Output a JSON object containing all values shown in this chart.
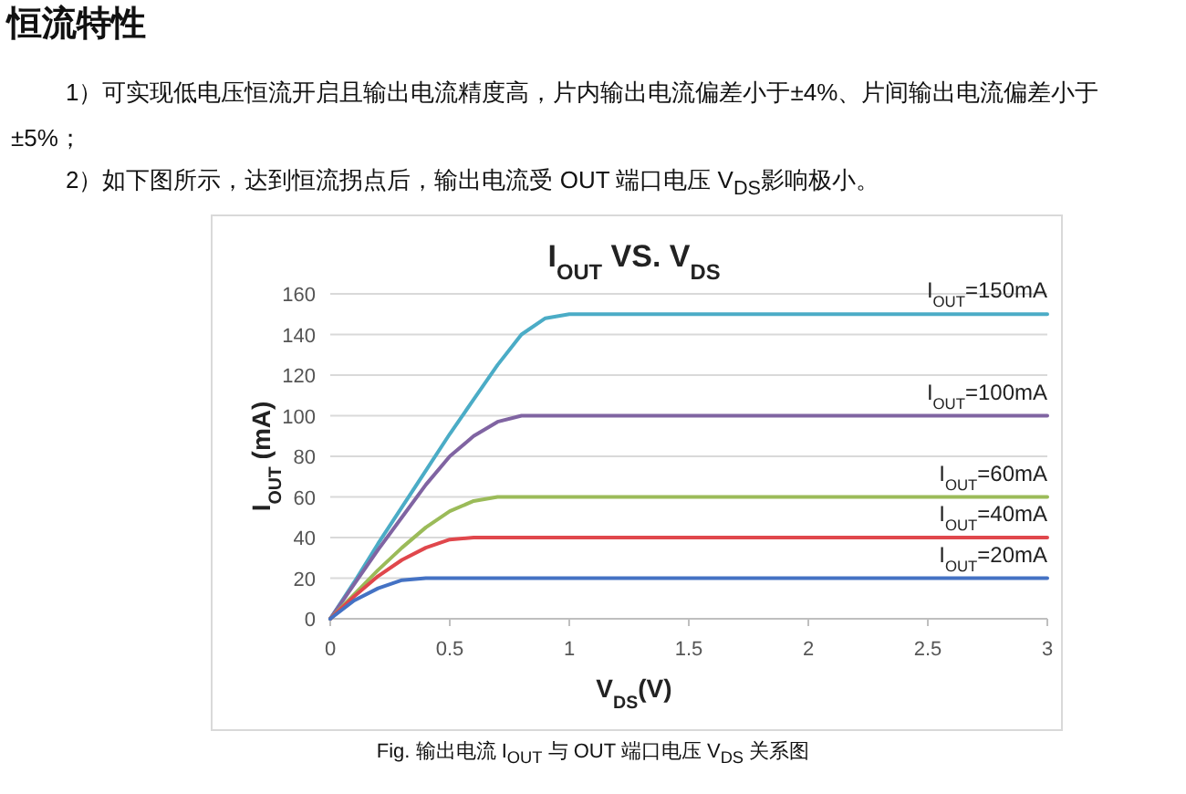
{
  "chart_data": {
    "type": "line",
    "title": "I$_{OUT}$ VS. V$_{DS}$",
    "xlabel": "V$_{DS}$(V)",
    "ylabel": "I$_{OUT}$ (mA)",
    "xlim": [
      0,
      3
    ],
    "xticks": [
      0,
      0.5,
      1,
      1.5,
      2,
      2.5,
      3
    ],
    "ylim": [
      0,
      160
    ],
    "yticks": [
      0,
      20,
      40,
      60,
      80,
      100,
      120,
      140,
      160
    ],
    "grid": "y",
    "marker": "none",
    "line_style": "solid",
    "x": [
      0,
      0.1,
      0.2,
      0.3,
      0.4,
      0.5,
      0.6,
      0.7,
      0.8,
      0.9,
      1.0,
      1.5,
      2,
      2.5,
      3
    ],
    "series": [
      {
        "name": "I$_{OUT}$=150mA",
        "color": "#4bacc6",
        "values": [
          0,
          18,
          37,
          55,
          73,
          91,
          108,
          125,
          140,
          148,
          150,
          150,
          150,
          150,
          150
        ]
      },
      {
        "name": "I$_{OUT}$=100mA",
        "color": "#8064a2",
        "values": [
          0,
          17,
          34,
          50,
          66,
          80,
          90,
          97,
          100,
          100,
          100,
          100,
          100,
          100,
          100
        ]
      },
      {
        "name": "I$_{OUT}$=60mA",
        "color": "#9bbb59",
        "values": [
          0,
          12,
          24,
          35,
          45,
          53,
          58,
          60,
          60,
          60,
          60,
          60,
          60,
          60,
          60
        ]
      },
      {
        "name": "I$_{OUT}$=40mA",
        "color": "#e0474c",
        "values": [
          0,
          11,
          21,
          29,
          35,
          39,
          40,
          40,
          40,
          40,
          40,
          40,
          40,
          40,
          40
        ]
      },
      {
        "name": "I$_{OUT}$=20mA",
        "color": "#4472c4",
        "values": [
          0,
          9,
          15,
          19,
          20,
          20,
          20,
          20,
          20,
          20,
          20,
          20,
          20,
          20,
          20
        ]
      }
    ],
    "annotations": [
      "恒流特性",
      "1）可实现低电压恒流开启且输出电流精度高，片内输出电流偏差小于±4%、片间输出电流偏差小于±5%；",
      "2）如下图所示，达到恒流拐点后，输出电流受 OUT 端口电压 V$_{DS}$影响极小。",
      "Fig. 输出电流 I$_{OUT}$ 与 OUT 端口电压 V$_{DS}$ 关系图"
    ]
  }
}
